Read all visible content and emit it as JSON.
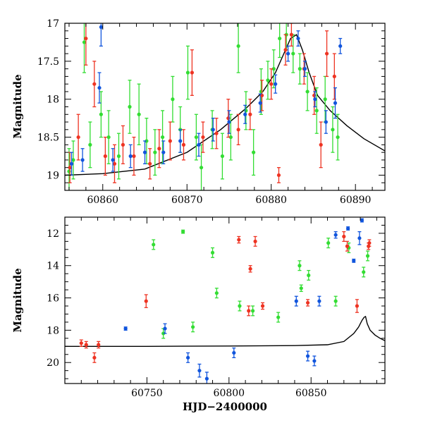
{
  "figure": {
    "xlabel": "HJD−2400000",
    "colors": {
      "green": "#33dd33",
      "red": "#ee3322",
      "blue": "#1155dd",
      "model": "#000000"
    }
  },
  "chart_data": [
    {
      "type": "scatter",
      "panel": "top",
      "ylabel": "Magnitude",
      "xlabel": "",
      "xlim": [
        60855.5,
        60893.5
      ],
      "ylim": [
        19.2,
        17.0
      ],
      "y_inverted": true,
      "x_ticks": [
        60860,
        60870,
        60880,
        60890
      ],
      "y_ticks": [
        17,
        17.5,
        18,
        18.5,
        19
      ],
      "y_tick_labels": [
        "17",
        "17.5",
        "18",
        "18.5",
        "19"
      ],
      "series": [
        {
          "color": "green",
          "points": [
            [
              60856.0,
              18.95,
              0.3
            ],
            [
              60856.5,
              18.8,
              0.25
            ],
            [
              60857.8,
              17.25,
              0.4
            ],
            [
              60858.5,
              18.6,
              0.3
            ],
            [
              60859.8,
              18.2,
              0.3
            ],
            [
              60860.7,
              18.5,
              0.35
            ],
            [
              60861.9,
              18.75,
              0.3
            ],
            [
              60863.2,
              18.1,
              0.35
            ],
            [
              60864.3,
              18.2,
              0.4
            ],
            [
              60865.2,
              18.55,
              0.3
            ],
            [
              60866.2,
              18.7,
              0.3
            ],
            [
              60867.1,
              18.5,
              0.35
            ],
            [
              60868.3,
              18.0,
              0.3
            ],
            [
              60869.2,
              18.4,
              0.3
            ],
            [
              60870.1,
              17.65,
              0.35
            ],
            [
              60871.1,
              18.5,
              0.3
            ],
            [
              60871.7,
              18.9,
              0.3
            ],
            [
              60873.0,
              18.4,
              0.25
            ],
            [
              60874.2,
              18.75,
              0.3
            ],
            [
              60875.2,
              18.5,
              0.3
            ],
            [
              60876.1,
              17.3,
              0.35
            ],
            [
              60877.0,
              18.15,
              0.25
            ],
            [
              60877.9,
              18.7,
              0.3
            ],
            [
              60878.8,
              17.9,
              0.3
            ],
            [
              60879.6,
              17.75,
              0.25
            ],
            [
              60880.3,
              17.6,
              0.25
            ],
            [
              60881.0,
              17.2,
              0.25
            ],
            [
              60881.8,
              17.15,
              0.2
            ],
            [
              60882.6,
              17.4,
              0.25
            ],
            [
              60883.4,
              17.6,
              0.2
            ],
            [
              60884.3,
              17.9,
              0.25
            ],
            [
              60885.4,
              18.15,
              0.3
            ],
            [
              60886.4,
              18.0,
              0.3
            ],
            [
              60887.3,
              18.4,
              0.3
            ],
            [
              60887.9,
              18.5,
              0.3
            ]
          ]
        },
        {
          "color": "red",
          "points": [
            [
              60856.1,
              18.9,
              0.2
            ],
            [
              60857.1,
              18.5,
              0.3
            ],
            [
              60858.0,
              17.2,
              0.35
            ],
            [
              60859.0,
              17.8,
              0.3
            ],
            [
              60860.3,
              18.75,
              0.25
            ],
            [
              60861.4,
              18.85,
              0.25
            ],
            [
              60862.4,
              18.6,
              0.25
            ],
            [
              60863.7,
              18.75,
              0.25
            ],
            [
              60865.6,
              18.85,
              0.2
            ],
            [
              60866.7,
              18.65,
              0.25
            ],
            [
              60868.0,
              18.55,
              0.25
            ],
            [
              60869.6,
              18.6,
              0.2
            ],
            [
              60870.6,
              17.65,
              0.3
            ],
            [
              60871.9,
              18.5,
              0.2
            ],
            [
              60873.5,
              18.45,
              0.2
            ],
            [
              60874.9,
              18.25,
              0.25
            ],
            [
              60876.1,
              18.4,
              0.2
            ],
            [
              60877.5,
              18.2,
              0.2
            ],
            [
              60878.9,
              17.95,
              0.2
            ],
            [
              60880.0,
              17.8,
              0.2
            ],
            [
              60880.9,
              19.0,
              0.1
            ],
            [
              60881.7,
              17.35,
              0.2
            ],
            [
              60882.4,
              17.15,
              0.15
            ],
            [
              60883.9,
              17.6,
              0.2
            ],
            [
              60885.1,
              17.95,
              0.25
            ],
            [
              60885.9,
              18.6,
              0.3
            ],
            [
              60886.6,
              17.4,
              0.3
            ],
            [
              60887.5,
              17.7,
              0.3
            ]
          ]
        },
        {
          "color": "blue",
          "points": [
            [
              60856.3,
              18.85,
              0.15
            ],
            [
              60857.6,
              18.8,
              0.15
            ],
            [
              60859.6,
              17.85,
              0.2
            ],
            [
              60859.8,
              17.05,
              0.25
            ],
            [
              60861.2,
              18.8,
              0.15
            ],
            [
              60863.3,
              18.75,
              0.15
            ],
            [
              60865.0,
              18.7,
              0.15
            ],
            [
              60867.2,
              18.7,
              0.15
            ],
            [
              60869.2,
              18.55,
              0.15
            ],
            [
              60871.4,
              18.6,
              0.15
            ],
            [
              60873.1,
              18.4,
              0.15
            ],
            [
              60875.0,
              18.3,
              0.15
            ],
            [
              60876.9,
              18.2,
              0.12
            ],
            [
              60878.7,
              18.05,
              0.12
            ],
            [
              60880.5,
              17.8,
              0.12
            ],
            [
              60882.0,
              17.4,
              0.1
            ],
            [
              60883.2,
              17.2,
              0.1
            ],
            [
              60884.0,
              17.6,
              0.1
            ],
            [
              60885.2,
              18.0,
              0.1
            ],
            [
              60886.5,
              18.3,
              0.15
            ],
            [
              60887.6,
              18.05,
              0.2
            ],
            [
              60888.2,
              17.3,
              0.1
            ]
          ]
        }
      ],
      "model_curve": [
        [
          60855.5,
          19.0
        ],
        [
          60860,
          18.98
        ],
        [
          60865,
          18.92
        ],
        [
          60870,
          18.7
        ],
        [
          60874,
          18.4
        ],
        [
          60877,
          18.12
        ],
        [
          60879,
          17.9
        ],
        [
          60880.5,
          17.65
        ],
        [
          60881.5,
          17.4
        ],
        [
          60882.3,
          17.2
        ],
        [
          60883,
          17.15
        ],
        [
          60883.7,
          17.35
        ],
        [
          60884.5,
          17.65
        ],
        [
          60885.5,
          17.95
        ],
        [
          60887,
          18.15
        ],
        [
          60889,
          18.35
        ],
        [
          60891,
          18.52
        ],
        [
          60893.5,
          18.68
        ]
      ]
    },
    {
      "type": "scatter",
      "panel": "bottom",
      "ylabel": "Magnitude",
      "xlabel": "HJD−2400000",
      "xlim": [
        60700,
        60895
      ],
      "ylim": [
        21.3,
        11.0
      ],
      "y_inverted": true,
      "x_ticks": [
        60750,
        60800,
        60850
      ],
      "y_ticks": [
        12,
        14,
        16,
        18,
        20
      ],
      "y_tick_labels": [
        "12",
        "14",
        "16",
        "18",
        "20"
      ],
      "series": [
        {
          "color": "green",
          "points": [
            [
              60754.0,
              12.7,
              0.3
            ],
            [
              60772.0,
              11.9,
              0.1
            ],
            [
              60790.0,
              13.2,
              0.3
            ],
            [
              60792.5,
              15.7,
              0.3
            ],
            [
              60806.5,
              16.5,
              0.3
            ],
            [
              60814.5,
              16.8,
              0.3
            ],
            [
              60843.0,
              14.0,
              0.3
            ],
            [
              60848.5,
              14.6,
              0.3
            ],
            [
              60860.5,
              12.6,
              0.3
            ],
            [
              60873.0,
              12.9,
              0.3
            ],
            [
              60882.0,
              14.4,
              0.3
            ],
            [
              60884.5,
              13.4,
              0.3
            ],
            [
              60844.0,
              15.4,
              0.2
            ],
            [
              60760.0,
              18.2,
              0.3
            ],
            [
              60778.0,
              17.8,
              0.3
            ],
            [
              60830.0,
              17.2,
              0.3
            ],
            [
              60865.0,
              16.2,
              0.3
            ]
          ]
        },
        {
          "color": "red",
          "points": [
            [
              60710.0,
              18.8,
              0.2
            ],
            [
              60713.0,
              18.9,
              0.2
            ],
            [
              60718.0,
              19.7,
              0.3
            ],
            [
              60720.5,
              18.9,
              0.2
            ],
            [
              60749.5,
              16.2,
              0.4
            ],
            [
              60806.0,
              12.4,
              0.2
            ],
            [
              60816.0,
              12.5,
              0.3
            ],
            [
              60813.0,
              14.2,
              0.2
            ],
            [
              60812.0,
              16.8,
              0.3
            ],
            [
              60820.5,
              16.5,
              0.2
            ],
            [
              60848.0,
              16.3,
              0.2
            ],
            [
              60870.0,
              12.2,
              0.3
            ],
            [
              60872.0,
              12.8,
              0.3
            ],
            [
              60878.0,
              16.5,
              0.4
            ],
            [
              60885.5,
              12.6,
              0.2
            ],
            [
              60885.0,
              12.8,
              0.2
            ]
          ]
        },
        {
          "color": "blue",
          "points": [
            [
              60737.0,
              17.9,
              0.1
            ],
            [
              60761.0,
              17.9,
              0.3
            ],
            [
              60775.0,
              19.7,
              0.3
            ],
            [
              60782.0,
              20.5,
              0.4
            ],
            [
              60786.5,
              21.0,
              0.4
            ],
            [
              60803.0,
              19.4,
              0.3
            ],
            [
              60841.0,
              16.2,
              0.3
            ],
            [
              60855.0,
              16.2,
              0.3
            ],
            [
              60865.0,
              12.1,
              0.2
            ],
            [
              60872.5,
              11.7,
              0.1
            ],
            [
              60876.0,
              13.7,
              0.1
            ],
            [
              60879.5,
              12.3,
              0.4
            ],
            [
              60881.0,
              11.2,
              0.1
            ],
            [
              60848.0,
              19.6,
              0.3
            ],
            [
              60852.0,
              19.9,
              0.3
            ]
          ]
        }
      ],
      "model_curve": [
        [
          60700,
          19.0
        ],
        [
          60750,
          19.0
        ],
        [
          60800,
          18.98
        ],
        [
          60840,
          18.95
        ],
        [
          60860,
          18.9
        ],
        [
          60870,
          18.7
        ],
        [
          60876,
          18.2
        ],
        [
          60879,
          17.8
        ],
        [
          60881,
          17.4
        ],
        [
          60882.3,
          17.2
        ],
        [
          60883.2,
          17.15
        ],
        [
          60884.2,
          17.6
        ],
        [
          60886,
          18.0
        ],
        [
          60889,
          18.3
        ],
        [
          60892,
          18.5
        ],
        [
          60895,
          18.65
        ]
      ]
    }
  ]
}
